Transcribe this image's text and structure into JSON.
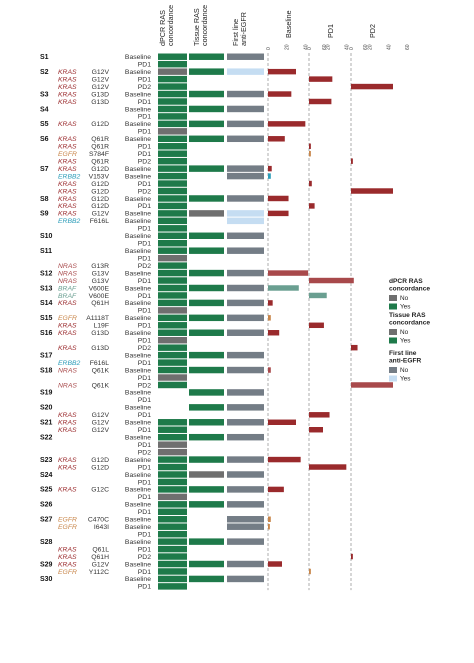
{
  "columns": {
    "dpcr": "dPCR RAS concordance",
    "tissue": "Tissue RAS concordance",
    "firstline": "First line anti-EGFR",
    "baseline": "Baseline",
    "pd1": "PD1",
    "pd2": "PD2"
  },
  "axis_ticks": [
    "0",
    "20",
    "40",
    "60"
  ],
  "colors": {
    "yes_green": "#1e7a4a",
    "no_grey": "#6f6f6f",
    "firstline_no": "#747d86",
    "firstline_yes": "#c5ddf2",
    "kras": "#9a2a2c",
    "nras": "#a8494b",
    "egfr": "#c8864a",
    "braf": "#6a9f91",
    "erbb2": "#2b9cb8"
  },
  "legend": {
    "dpcr": {
      "title": "dPCR RAS concordance",
      "items": [
        {
          "label": "No",
          "color": "#6f6f6f"
        },
        {
          "label": "Yes",
          "color": "#1e7a4a"
        }
      ]
    },
    "tissue": {
      "title": "Tissue RAS concordance",
      "items": [
        {
          "label": "No",
          "color": "#6f6f6f"
        },
        {
          "label": "Yes",
          "color": "#1e7a4a"
        }
      ]
    },
    "firstline": {
      "title": "First line anti-EGFR",
      "items": [
        {
          "label": "No",
          "color": "#747d86"
        },
        {
          "label": "Yes",
          "color": "#c5ddf2"
        }
      ]
    }
  },
  "chart_data": {
    "type": "bar",
    "x_scale": [
      0,
      60
    ],
    "rows": [
      {
        "s": "S1",
        "g": "",
        "m": "",
        "tp": "Baseline",
        "d": "Y",
        "t": "Y",
        "f": "N",
        "b": null,
        "p1": null,
        "p2": null
      },
      {
        "s": "",
        "g": "",
        "m": "",
        "tp": "PD1",
        "d": "Y",
        "t": "",
        "f": "",
        "b": null,
        "p1": null,
        "p2": null
      },
      {
        "s": "S2",
        "g": "KRAS",
        "m": "G12V",
        "tp": "Baseline",
        "d": "N",
        "t": "Y",
        "f": "Y",
        "b": 30,
        "p1": null,
        "p2": null
      },
      {
        "s": "",
        "g": "KRAS",
        "m": "G12V",
        "tp": "PD1",
        "d": "Y",
        "t": "",
        "f": "",
        "b": null,
        "p1": 25,
        "p2": null
      },
      {
        "s": "",
        "g": "KRAS",
        "m": "G12V",
        "tp": "PD2",
        "d": "Y",
        "t": "",
        "f": "",
        "b": null,
        "p1": null,
        "p2": 45
      },
      {
        "s": "S3",
        "g": "KRAS",
        "m": "G13D",
        "tp": "Baseline",
        "d": "Y",
        "t": "Y",
        "f": "N",
        "b": 25,
        "p1": null,
        "p2": null
      },
      {
        "s": "",
        "g": "KRAS",
        "m": "G13D",
        "tp": "PD1",
        "d": "Y",
        "t": "",
        "f": "",
        "b": null,
        "p1": 24,
        "p2": null
      },
      {
        "s": "S4",
        "g": "",
        "m": "",
        "tp": "Baseline",
        "d": "Y",
        "t": "Y",
        "f": "N",
        "b": null,
        "p1": null,
        "p2": null
      },
      {
        "s": "",
        "g": "",
        "m": "",
        "tp": "PD1",
        "d": "Y",
        "t": "",
        "f": "",
        "b": null,
        "p1": null,
        "p2": null
      },
      {
        "s": "S5",
        "g": "KRAS",
        "m": "G12D",
        "tp": "Baseline",
        "d": "Y",
        "t": "Y",
        "f": "N",
        "b": 40,
        "p1": null,
        "p2": null
      },
      {
        "s": "",
        "g": "",
        "m": "",
        "tp": "PD1",
        "d": "N",
        "t": "",
        "f": "",
        "b": null,
        "p1": null,
        "p2": null
      },
      {
        "s": "S6",
        "g": "KRAS",
        "m": "Q61R",
        "tp": "Baseline",
        "d": "Y",
        "t": "Y",
        "f": "N",
        "b": 18,
        "p1": null,
        "p2": null
      },
      {
        "s": "",
        "g": "KRAS",
        "m": "Q61R",
        "tp": "PD1",
        "d": "Y",
        "t": "",
        "f": "",
        "b": null,
        "p1": 2,
        "p2": null
      },
      {
        "s": "",
        "g": "EGFR",
        "m": "S784F",
        "tp": "PD1",
        "d": "Y",
        "t": "",
        "f": "",
        "b": null,
        "p1": 2,
        "p2": null
      },
      {
        "s": "",
        "g": "KRAS",
        "m": "Q61R",
        "tp": "PD2",
        "d": "Y",
        "t": "",
        "f": "",
        "b": null,
        "p1": null,
        "p2": 2
      },
      {
        "s": "S7",
        "g": "KRAS",
        "m": "G12D",
        "tp": "Baseline",
        "d": "Y",
        "t": "Y",
        "f": "N",
        "b": 4,
        "p1": null,
        "p2": null
      },
      {
        "s": "",
        "g": "ERBB2",
        "m": "V153V",
        "tp": "Baseline",
        "d": "Y",
        "t": "",
        "f": "N",
        "b": 3,
        "p1": null,
        "p2": null
      },
      {
        "s": "",
        "g": "KRAS",
        "m": "G12D",
        "tp": "PD1",
        "d": "Y",
        "t": "",
        "f": "",
        "b": null,
        "p1": 3,
        "p2": null
      },
      {
        "s": "",
        "g": "KRAS",
        "m": "G12D",
        "tp": "PD2",
        "d": "Y",
        "t": "",
        "f": "",
        "b": null,
        "p1": null,
        "p2": 45
      },
      {
        "s": "S8",
        "g": "KRAS",
        "m": "G12D",
        "tp": "Baseline",
        "d": "Y",
        "t": "Y",
        "f": "N",
        "b": 22,
        "p1": null,
        "p2": null
      },
      {
        "s": "",
        "g": "KRAS",
        "m": "G12D",
        "tp": "PD1",
        "d": "Y",
        "t": "",
        "f": "",
        "b": null,
        "p1": 6,
        "p2": null
      },
      {
        "s": "S9",
        "g": "KRAS",
        "m": "G12V",
        "tp": "Baseline",
        "d": "Y",
        "t": "N",
        "f": "Y",
        "b": 22,
        "p1": null,
        "p2": null
      },
      {
        "s": "",
        "g": "ERBB2",
        "m": "F616L",
        "tp": "Baseline",
        "d": "Y",
        "t": "",
        "f": "Y",
        "b": null,
        "p1": null,
        "p2": null
      },
      {
        "s": "",
        "g": "",
        "m": "",
        "tp": "PD1",
        "d": "Y",
        "t": "",
        "f": "",
        "b": null,
        "p1": null,
        "p2": null
      },
      {
        "s": "S10",
        "g": "",
        "m": "",
        "tp": "Baseline",
        "d": "Y",
        "t": "Y",
        "f": "N",
        "b": null,
        "p1": null,
        "p2": null
      },
      {
        "s": "",
        "g": "",
        "m": "",
        "tp": "PD1",
        "d": "Y",
        "t": "",
        "f": "",
        "b": null,
        "p1": null,
        "p2": null
      },
      {
        "s": "S11",
        "g": "",
        "m": "",
        "tp": "Baseline",
        "d": "Y",
        "t": "Y",
        "f": "N",
        "b": null,
        "p1": null,
        "p2": null
      },
      {
        "s": "",
        "g": "",
        "m": "",
        "tp": "PD1",
        "d": "N",
        "t": "",
        "f": "",
        "b": null,
        "p1": null,
        "p2": null
      },
      {
        "s": "",
        "g": "NRAS",
        "m": "G13R",
        "tp": "PD2",
        "d": "Y",
        "t": "",
        "f": "",
        "b": null,
        "p1": null,
        "p2": null
      },
      {
        "s": "S12",
        "g": "NRAS",
        "m": "G13V",
        "tp": "Baseline",
        "d": "Y",
        "t": "Y",
        "f": "N",
        "b": 43,
        "p1": null,
        "p2": null
      },
      {
        "s": "",
        "g": "NRAS",
        "m": "G13V",
        "tp": "PD1",
        "d": "Y",
        "t": "",
        "f": "",
        "b": null,
        "p1": 48,
        "p2": null
      },
      {
        "s": "S13",
        "g": "BRAF",
        "m": "V600E",
        "tp": "Baseline",
        "d": "Y",
        "t": "Y",
        "f": "N",
        "b": 33,
        "p1": null,
        "p2": null
      },
      {
        "s": "",
        "g": "BRAF",
        "m": "V600E",
        "tp": "PD1",
        "d": "Y",
        "t": "",
        "f": "",
        "b": null,
        "p1": 19,
        "p2": null
      },
      {
        "s": "S14",
        "g": "KRAS",
        "m": "Q61H",
        "tp": "Baseline",
        "d": "Y",
        "t": "Y",
        "f": "N",
        "b": 5,
        "p1": null,
        "p2": null
      },
      {
        "s": "",
        "g": "",
        "m": "",
        "tp": "PD1",
        "d": "N",
        "t": "",
        "f": "",
        "b": null,
        "p1": null,
        "p2": null
      },
      {
        "s": "S15",
        "g": "EGFR",
        "m": "A1118T",
        "tp": "Baseline",
        "d": "Y",
        "t": "Y",
        "f": "N",
        "b": 3,
        "p1": null,
        "p2": null
      },
      {
        "s": "",
        "g": "KRAS",
        "m": "L19F",
        "tp": "PD1",
        "d": "Y",
        "t": "",
        "f": "",
        "b": null,
        "p1": 16,
        "p2": null
      },
      {
        "s": "S16",
        "g": "KRAS",
        "m": "G13D",
        "tp": "Baseline",
        "d": "Y",
        "t": "Y",
        "f": "N",
        "b": 12,
        "p1": null,
        "p2": null
      },
      {
        "s": "",
        "g": "",
        "m": "",
        "tp": "PD1",
        "d": "N",
        "t": "",
        "f": "",
        "b": null,
        "p1": null,
        "p2": null
      },
      {
        "s": "",
        "g": "KRAS",
        "m": "G13D",
        "tp": "PD2",
        "d": "Y",
        "t": "",
        "f": "",
        "b": null,
        "p1": null,
        "p2": 7
      },
      {
        "s": "S17",
        "g": "",
        "m": "",
        "tp": "Baseline",
        "d": "Y",
        "t": "Y",
        "f": "N",
        "b": null,
        "p1": null,
        "p2": null
      },
      {
        "s": "",
        "g": "ERBB2",
        "m": "F616L",
        "tp": "PD1",
        "d": "Y",
        "t": "",
        "f": "",
        "b": null,
        "p1": null,
        "p2": null
      },
      {
        "s": "S18",
        "g": "NRAS",
        "m": "Q61K",
        "tp": "Baseline",
        "d": "Y",
        "t": "Y",
        "f": "N",
        "b": 3,
        "p1": null,
        "p2": null
      },
      {
        "s": "",
        "g": "",
        "m": "",
        "tp": "PD1",
        "d": "N",
        "t": "",
        "f": "",
        "b": null,
        "p1": null,
        "p2": null
      },
      {
        "s": "",
        "g": "NRAS",
        "m": "Q61K",
        "tp": "PD2",
        "d": "Y",
        "t": "",
        "f": "",
        "b": null,
        "p1": null,
        "p2": 45
      },
      {
        "s": "S19",
        "g": "",
        "m": "",
        "tp": "Baseline",
        "d": "",
        "t": "Y",
        "f": "N",
        "b": null,
        "p1": null,
        "p2": null
      },
      {
        "s": "",
        "g": "",
        "m": "",
        "tp": "PD1",
        "d": "",
        "t": "",
        "f": "",
        "b": null,
        "p1": null,
        "p2": null
      },
      {
        "s": "S20",
        "g": "",
        "m": "",
        "tp": "Baseline",
        "d": "",
        "t": "Y",
        "f": "N",
        "b": null,
        "p1": null,
        "p2": null
      },
      {
        "s": "",
        "g": "KRAS",
        "m": "G12V",
        "tp": "PD1",
        "d": "",
        "t": "",
        "f": "",
        "b": null,
        "p1": 22,
        "p2": null
      },
      {
        "s": "S21",
        "g": "KRAS",
        "m": "G12V",
        "tp": "Baseline",
        "d": "Y",
        "t": "Y",
        "f": "N",
        "b": 30,
        "p1": null,
        "p2": null
      },
      {
        "s": "",
        "g": "KRAS",
        "m": "G12V",
        "tp": "PD1",
        "d": "Y",
        "t": "",
        "f": "",
        "b": null,
        "p1": 15,
        "p2": null
      },
      {
        "s": "S22",
        "g": "",
        "m": "",
        "tp": "Baseline",
        "d": "Y",
        "t": "Y",
        "f": "N",
        "b": null,
        "p1": null,
        "p2": null
      },
      {
        "s": "",
        "g": "",
        "m": "",
        "tp": "PD1",
        "d": "N",
        "t": "",
        "f": "",
        "b": null,
        "p1": null,
        "p2": null
      },
      {
        "s": "",
        "g": "",
        "m": "",
        "tp": "PD2",
        "d": "N",
        "t": "",
        "f": "",
        "b": null,
        "p1": null,
        "p2": null
      },
      {
        "s": "S23",
        "g": "KRAS",
        "m": "G12D",
        "tp": "Baseline",
        "d": "Y",
        "t": "Y",
        "f": "N",
        "b": 35,
        "p1": null,
        "p2": null
      },
      {
        "s": "",
        "g": "KRAS",
        "m": "G12D",
        "tp": "PD1",
        "d": "Y",
        "t": "",
        "f": "",
        "b": null,
        "p1": 40,
        "p2": null
      },
      {
        "s": "S24",
        "g": "",
        "m": "",
        "tp": "Baseline",
        "d": "Y",
        "t": "N",
        "f": "N",
        "b": null,
        "p1": null,
        "p2": null
      },
      {
        "s": "",
        "g": "",
        "m": "",
        "tp": "PD1",
        "d": "Y",
        "t": "",
        "f": "",
        "b": null,
        "p1": null,
        "p2": null
      },
      {
        "s": "S25",
        "g": "KRAS",
        "m": "G12C",
        "tp": "Baseline",
        "d": "Y",
        "t": "Y",
        "f": "N",
        "b": 17,
        "p1": null,
        "p2": null
      },
      {
        "s": "",
        "g": "",
        "m": "",
        "tp": "PD1",
        "d": "N",
        "t": "",
        "f": "",
        "b": null,
        "p1": null,
        "p2": null
      },
      {
        "s": "S26",
        "g": "",
        "m": "",
        "tp": "Baseline",
        "d": "Y",
        "t": "Y",
        "f": "N",
        "b": null,
        "p1": null,
        "p2": null
      },
      {
        "s": "",
        "g": "",
        "m": "",
        "tp": "PD1",
        "d": "Y",
        "t": "",
        "f": "",
        "b": null,
        "p1": null,
        "p2": null
      },
      {
        "s": "S27",
        "g": "EGFR",
        "m": "C470C",
        "tp": "Baseline",
        "d": "Y",
        "t": "",
        "f": "N",
        "b": 3,
        "p1": null,
        "p2": null
      },
      {
        "s": "",
        "g": "EGFR",
        "m": "I643I",
        "tp": "Baseline",
        "d": "Y",
        "t": "",
        "f": "N",
        "b": 2,
        "p1": null,
        "p2": null
      },
      {
        "s": "",
        "g": "",
        "m": "",
        "tp": "PD1",
        "d": "Y",
        "t": "",
        "f": "",
        "b": null,
        "p1": null,
        "p2": null
      },
      {
        "s": "S28",
        "g": "",
        "m": "",
        "tp": "Baseline",
        "d": "Y",
        "t": "Y",
        "f": "N",
        "b": null,
        "p1": null,
        "p2": null
      },
      {
        "s": "",
        "g": "KRAS",
        "m": "Q61L",
        "tp": "PD1",
        "d": "Y",
        "t": "",
        "f": "",
        "b": null,
        "p1": null,
        "p2": null
      },
      {
        "s": "",
        "g": "KRAS",
        "m": "Q61H",
        "tp": "PD2",
        "d": "Y",
        "t": "",
        "f": "",
        "b": null,
        "p1": null,
        "p2": 2
      },
      {
        "s": "S29",
        "g": "KRAS",
        "m": "G12V",
        "tp": "Baseline",
        "d": "Y",
        "t": "Y",
        "f": "N",
        "b": 15,
        "p1": null,
        "p2": null
      },
      {
        "s": "",
        "g": "EGFR",
        "m": "Y112C",
        "tp": "PD1",
        "d": "Y",
        "t": "",
        "f": "",
        "b": null,
        "p1": 2,
        "p2": null
      },
      {
        "s": "S30",
        "g": "",
        "m": "",
        "tp": "Baseline",
        "d": "Y",
        "t": "Y",
        "f": "N",
        "b": null,
        "p1": null,
        "p2": null
      },
      {
        "s": "",
        "g": "",
        "m": "",
        "tp": "PD1",
        "d": "Y",
        "t": "",
        "f": "",
        "b": null,
        "p1": null,
        "p2": null
      }
    ]
  }
}
